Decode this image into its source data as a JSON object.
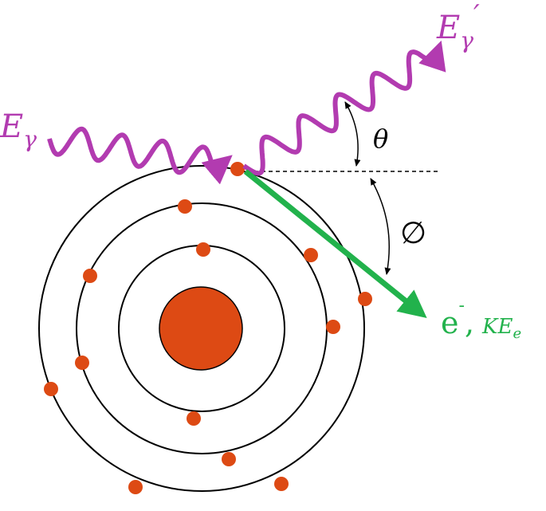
{
  "labels": {
    "incident_photon": {
      "main": "E",
      "sub": "γ"
    },
    "scattered_photon": {
      "main": "E",
      "sub": "γ",
      "sup": "′"
    },
    "theta": "θ",
    "phi": "∅",
    "electron": {
      "main": "e",
      "sup": "-",
      "sep": ",",
      "energy": "KE",
      "energy_sub": "e"
    }
  }
}
